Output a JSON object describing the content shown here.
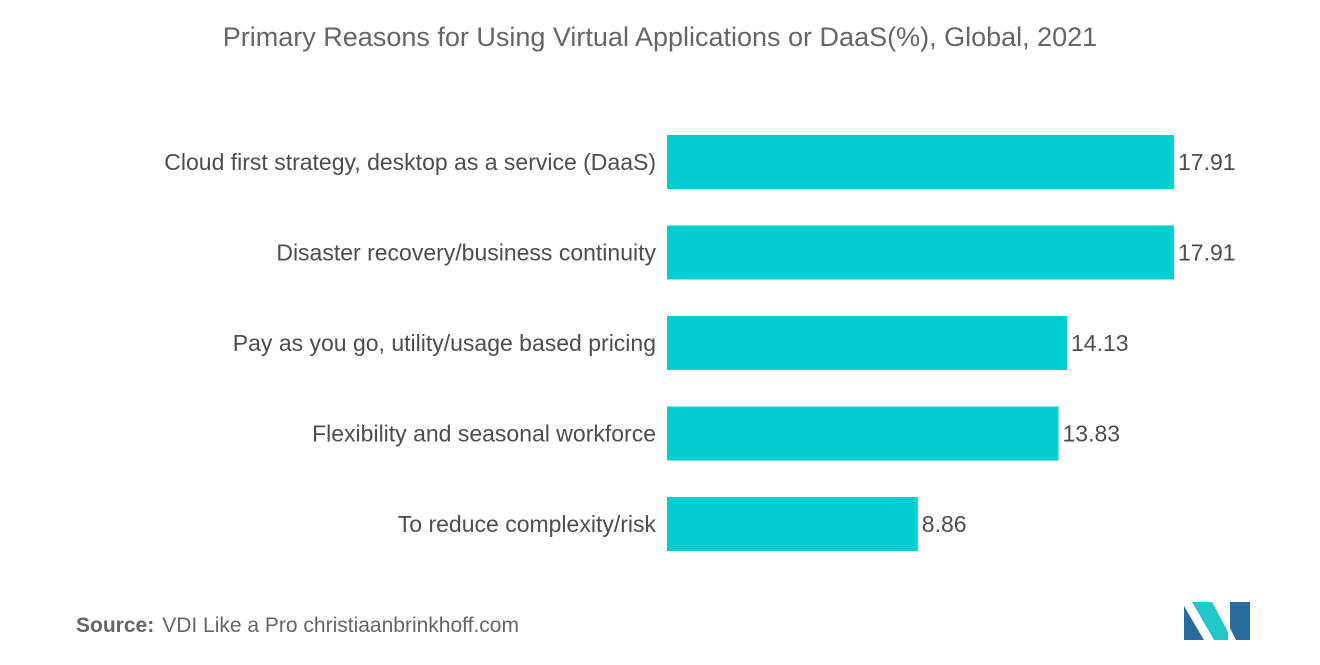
{
  "chart_data": {
    "type": "bar",
    "orientation": "horizontal",
    "title": "Primary Reasons for Using Virtual Applications or DaaS(%), Global, 2021",
    "categories": [
      "Cloud first strategy, desktop as a service (DaaS)",
      "Disaster recovery/business continuity",
      "Pay as you go, utility/usage based pricing",
      "Flexibility and seasonal workforce",
      "To reduce complexity/risk"
    ],
    "values": [
      17.91,
      17.91,
      14.13,
      13.83,
      8.86
    ],
    "value_labels": [
      "17.91",
      "17.91",
      "14.13",
      "13.83",
      "8.86"
    ],
    "xlim": [
      0,
      17.91
    ],
    "grid": false,
    "bar_color": "#00ced1"
  },
  "source": {
    "label": "Source:",
    "text": "VDI Like a Pro christiaanbrinkhoff.com"
  },
  "logo": {
    "icon": "mordor-logo-icon",
    "colors": [
      "#2a6b9e",
      "#21c7c9"
    ]
  }
}
